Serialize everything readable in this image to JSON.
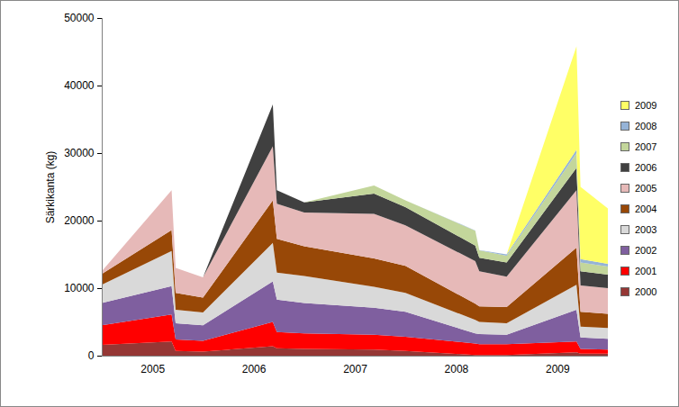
{
  "chart_data": {
    "type": "area",
    "stacked": true,
    "ylabel": "Särkikanta (kg)",
    "x": [
      2005,
      2005.69,
      2005.73,
      2006,
      2006.69,
      2006.73,
      2007,
      2007.69,
      2008,
      2008.69,
      2008.73,
      2009,
      2009.69,
      2009.73,
      2010
    ],
    "xlim": [
      2005,
      2010
    ],
    "xticks": [
      {
        "value": 2005.5,
        "label": "2005"
      },
      {
        "value": 2006.5,
        "label": "2006"
      },
      {
        "value": 2007.5,
        "label": "2007"
      },
      {
        "value": 2008.5,
        "label": "2008"
      },
      {
        "value": 2009.5,
        "label": "2009"
      }
    ],
    "ylim": [
      0,
      50000
    ],
    "yticks": [
      0,
      10000,
      20000,
      30000,
      40000,
      50000
    ],
    "grid": false,
    "legend": "right",
    "series": [
      {
        "name": "2000",
        "color": "#953735",
        "values": [
          1600,
          2100,
          700,
          600,
          1400,
          1100,
          1000,
          900,
          700,
          100,
          100,
          100,
          500,
          300,
          300
        ]
      },
      {
        "name": "2001",
        "color": "#ff0000",
        "values": [
          2900,
          4000,
          1700,
          1600,
          3600,
          2400,
          2300,
          2200,
          2100,
          1700,
          1600,
          1600,
          1600,
          700,
          600
        ]
      },
      {
        "name": "2002",
        "color": "#7f5f9f",
        "values": [
          3300,
          4200,
          2400,
          2300,
          6000,
          4800,
          4500,
          4000,
          3700,
          1500,
          1500,
          1400,
          4700,
          1700,
          1600
        ]
      },
      {
        "name": "2003",
        "color": "#d9d9d9",
        "values": [
          2700,
          5200,
          2000,
          1900,
          5700,
          4000,
          4000,
          3100,
          2800,
          2000,
          1800,
          1700,
          3700,
          1600,
          1600
        ]
      },
      {
        "name": "2004",
        "color": "#984807",
        "values": [
          1600,
          3100,
          2500,
          2200,
          6300,
          5000,
          4400,
          4200,
          4000,
          2400,
          2300,
          2400,
          5500,
          2200,
          2100
        ]
      },
      {
        "name": "2005",
        "color": "#e6b9b8",
        "values": [
          400,
          5900,
          3700,
          3000,
          8000,
          5200,
          5000,
          6600,
          6000,
          6300,
          5200,
          4500,
          8500,
          3900,
          3800
        ]
      },
      {
        "name": "2006",
        "color": "#404040",
        "values": [
          0,
          0,
          0,
          0,
          6200,
          2000,
          1500,
          3000,
          2700,
          2300,
          2000,
          2100,
          3300,
          2100,
          2000
        ]
      },
      {
        "name": "2007",
        "color": "#c3d69b",
        "values": [
          0,
          0,
          0,
          0,
          0,
          0,
          0,
          1200,
          1000,
          2200,
          1100,
          1000,
          2200,
          1300,
          1200
        ]
      },
      {
        "name": "2008",
        "color": "#95b3d7",
        "values": [
          0,
          0,
          0,
          0,
          0,
          0,
          0,
          0,
          0,
          50,
          50,
          200,
          500,
          500,
          400
        ]
      },
      {
        "name": "2009",
        "color": "#ffff66",
        "values": [
          0,
          0,
          0,
          0,
          0,
          0,
          0,
          0,
          0,
          0,
          0,
          0,
          15300,
          10700,
          8200
        ]
      }
    ]
  }
}
